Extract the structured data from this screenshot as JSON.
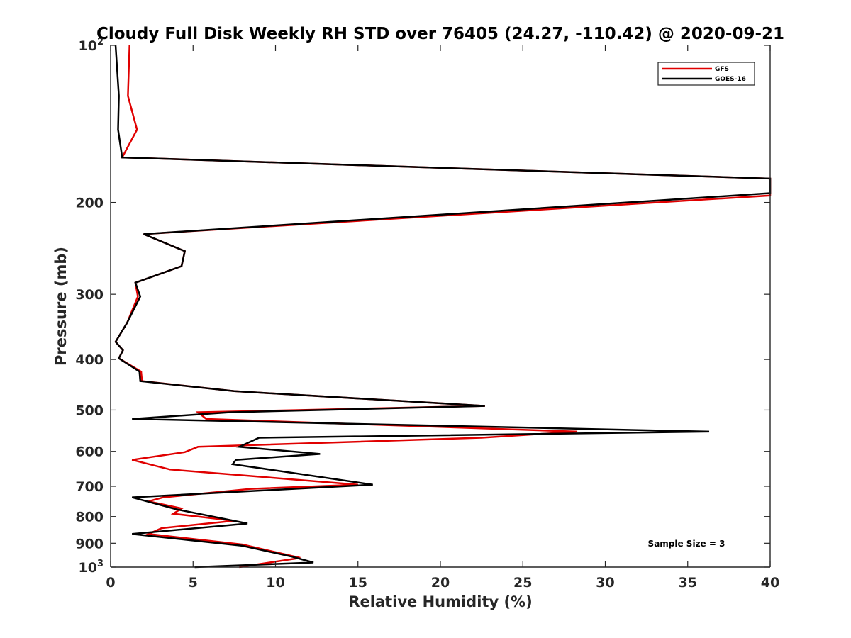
{
  "chart_data": {
    "type": "line",
    "title": "Cloudy Full Disk Weekly RH STD over 76405 (24.27, -110.42) @ 2020-09-21",
    "xlabel": "Relative Humidity (%)",
    "ylabel": "Pressure (mb)",
    "xlim": [
      0,
      40
    ],
    "ylim": [
      100,
      1000
    ],
    "y_scale": "log",
    "y_reversed": true,
    "x_ticks": [
      0,
      5,
      10,
      15,
      20,
      25,
      30,
      35,
      40
    ],
    "y_ticks": [
      {
        "value": 100,
        "label": "10",
        "sup": "2"
      },
      {
        "value": 200,
        "label": "200"
      },
      {
        "value": 300,
        "label": "300"
      },
      {
        "value": 400,
        "label": "400"
      },
      {
        "value": 500,
        "label": "500"
      },
      {
        "value": 600,
        "label": "600"
      },
      {
        "value": 700,
        "label": "700"
      },
      {
        "value": 800,
        "label": "800"
      },
      {
        "value": 900,
        "label": "900"
      },
      {
        "value": 1000,
        "label": "10",
        "sup": "3"
      }
    ],
    "grid": false,
    "legend_position": "top-right",
    "annotation": "Sample Size = 3",
    "series": [
      {
        "name": "GFS",
        "color": "#e00000",
        "points": [
          [
            1.15,
            100
          ],
          [
            1.05,
            125
          ],
          [
            1.6,
            145
          ],
          [
            0.7,
            164
          ],
          [
            40,
            180
          ],
          [
            40,
            194
          ],
          [
            2.0,
            230
          ],
          [
            4.5,
            248
          ],
          [
            4.3,
            265
          ],
          [
            1.5,
            285
          ],
          [
            1.65,
            303
          ],
          [
            1.0,
            340
          ],
          [
            0.3,
            370
          ],
          [
            0.75,
            384
          ],
          [
            0.5,
            398
          ],
          [
            1.85,
            422
          ],
          [
            1.9,
            440
          ],
          [
            7.5,
            460
          ],
          [
            22.7,
            491
          ],
          [
            5.3,
            505
          ],
          [
            5.8,
            520
          ],
          [
            28.3,
            550
          ],
          [
            22.5,
            565
          ],
          [
            5.3,
            588
          ],
          [
            4.5,
            602
          ],
          [
            1.3,
            623
          ],
          [
            3.6,
            650
          ],
          [
            15,
            695
          ],
          [
            8.5,
            708
          ],
          [
            3.2,
            735
          ],
          [
            2.3,
            748
          ],
          [
            4.3,
            772
          ],
          [
            3.8,
            790
          ],
          [
            7.5,
            815
          ],
          [
            3.1,
            842
          ],
          [
            2.3,
            864
          ],
          [
            8.0,
            905
          ],
          [
            11.5,
            960
          ],
          [
            7.8,
            1000
          ]
        ]
      },
      {
        "name": "GOES-16",
        "color": "#000000",
        "points": [
          [
            0.3,
            100
          ],
          [
            0.5,
            125
          ],
          [
            0.45,
            145
          ],
          [
            0.7,
            164
          ],
          [
            40,
            180
          ],
          [
            40,
            192
          ],
          [
            2.0,
            230
          ],
          [
            4.5,
            248
          ],
          [
            4.3,
            265
          ],
          [
            1.5,
            285
          ],
          [
            1.8,
            303
          ],
          [
            1.0,
            340
          ],
          [
            0.3,
            370
          ],
          [
            0.75,
            384
          ],
          [
            0.5,
            398
          ],
          [
            1.75,
            422
          ],
          [
            1.8,
            440
          ],
          [
            7.5,
            460
          ],
          [
            22.7,
            491
          ],
          [
            7.2,
            505
          ],
          [
            1.3,
            520
          ],
          [
            36.3,
            550
          ],
          [
            9.0,
            565
          ],
          [
            7.8,
            588
          ],
          [
            12.7,
            607
          ],
          [
            7.6,
            623
          ],
          [
            7.4,
            635
          ],
          [
            15.9,
            695
          ],
          [
            1.3,
            735
          ],
          [
            4.0,
            775
          ],
          [
            8.3,
            825
          ],
          [
            1.3,
            864
          ],
          [
            8.0,
            910
          ],
          [
            11.0,
            955
          ],
          [
            12.3,
            980
          ],
          [
            5.1,
            1000
          ]
        ]
      }
    ]
  }
}
